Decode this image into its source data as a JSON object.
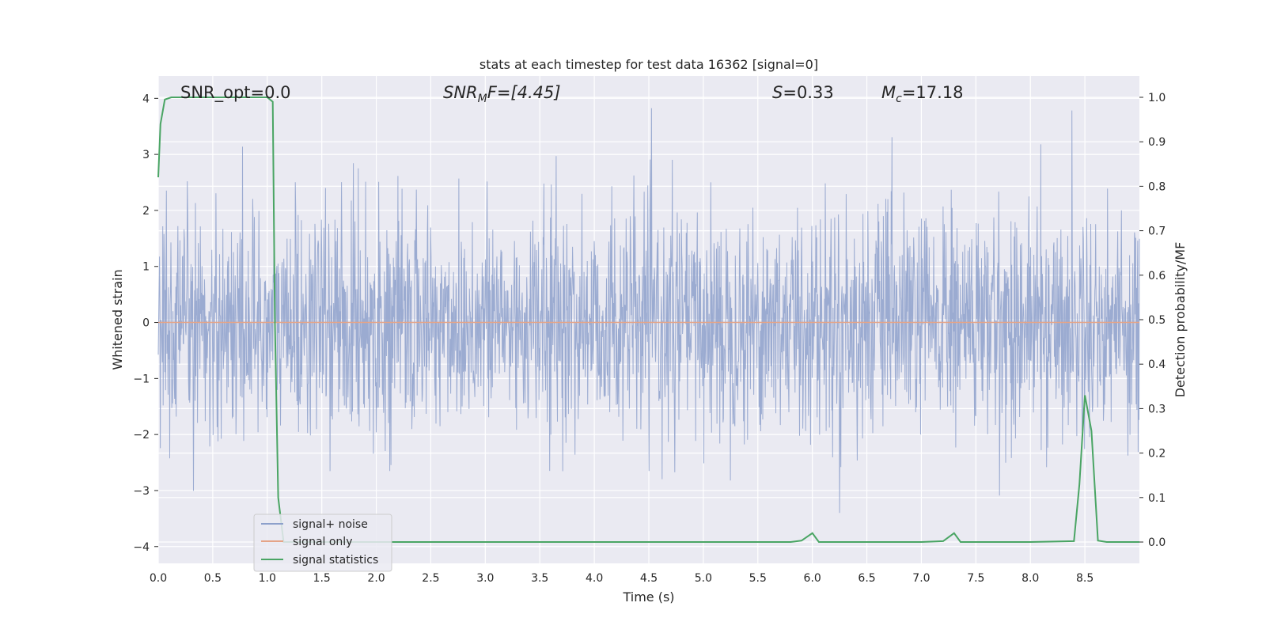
{
  "chart_data": {
    "type": "line",
    "title": "stats at each timestep for test data 16362 [signal=0]",
    "xlabel": "Time (s)",
    "ylabel": "Whitened strain",
    "y2label": "Detection probability/MF",
    "xlim": [
      0.0,
      9.0
    ],
    "ylim": [
      -4.3,
      4.4
    ],
    "y2lim": [
      -0.048,
      1.048
    ],
    "xticks": [
      "0.0",
      "0.5",
      "1.0",
      "1.5",
      "2.0",
      "2.5",
      "3.0",
      "3.5",
      "4.0",
      "4.5",
      "5.0",
      "5.5",
      "6.0",
      "6.5",
      "7.0",
      "7.5",
      "8.0",
      "8.5"
    ],
    "yticks": [
      "4",
      "3",
      "2",
      "1",
      "0",
      "−1",
      "−2",
      "−3",
      "−4"
    ],
    "y2ticks": [
      "1.0",
      "0.9",
      "0.8",
      "0.7",
      "0.6",
      "0.5",
      "0.4",
      "0.3",
      "0.2",
      "0.1",
      "0.0"
    ],
    "grid": true,
    "legend_position": "lower-left",
    "annotations": {
      "snr_opt": "SNR_opt=0.0",
      "snr_mf_main": "SNR",
      "snr_mf_sub": "M",
      "snr_mf_rest": "F=[4.45]",
      "s_label": "S",
      "s_value": "=0.33",
      "mc_main": "M",
      "mc_sub": "c",
      "mc_value": "=17.18"
    },
    "series": [
      {
        "name": "signal+ noise",
        "color": "#8da0cb",
        "axis": "left",
        "x_start": 0.0,
        "x_end": 9.0,
        "typical_amplitude": 1.0,
        "peak_max": 4.0,
        "peak_min": -3.7
      },
      {
        "name": "signal only",
        "color": "#e5a487",
        "axis": "left",
        "x": [
          0.0,
          9.0
        ],
        "y": [
          0.0,
          0.0
        ]
      },
      {
        "name": "signal statistics",
        "color": "#4aa564",
        "axis": "right",
        "x": [
          0.0,
          0.02,
          0.06,
          0.12,
          0.5,
          1.0,
          1.05,
          1.07,
          1.1,
          1.15,
          1.2,
          2.0,
          3.0,
          4.0,
          5.0,
          5.5,
          5.8,
          5.9,
          6.0,
          6.06,
          6.5,
          7.0,
          7.2,
          7.3,
          7.36,
          7.5,
          8.0,
          8.4,
          8.45,
          8.5,
          8.56,
          8.62,
          8.7,
          9.0
        ],
        "y": [
          0.82,
          0.94,
          0.995,
          1.0,
          1.0,
          1.0,
          0.99,
          0.5,
          0.1,
          0.0,
          0.0,
          0.0,
          0.0,
          0.0,
          0.0,
          0.0,
          0.0,
          0.003,
          0.02,
          0.0,
          0.0,
          0.0,
          0.002,
          0.02,
          0.0,
          0.0,
          0.0,
          0.002,
          0.13,
          0.33,
          0.25,
          0.003,
          0.0,
          0.0
        ]
      }
    ]
  }
}
